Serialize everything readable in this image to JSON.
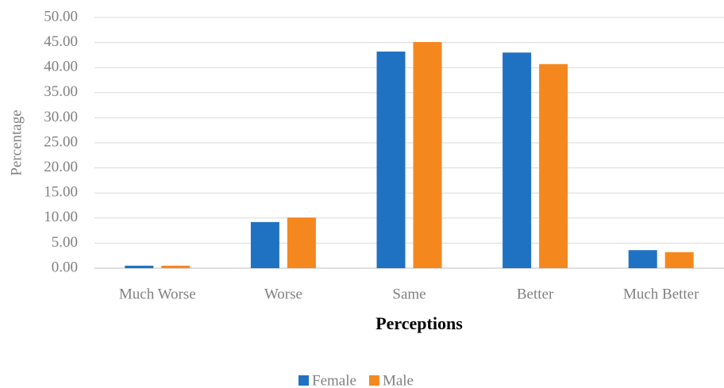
{
  "chart_data": {
    "type": "bar",
    "x_label": "Perceptions",
    "y_label": "Percentage",
    "categories": [
      "Much Worse",
      "Worse",
      "Same",
      "Better",
      "Much Better"
    ],
    "series": [
      {
        "name": "Female",
        "color": "#1f72c2",
        "values": [
          0.5,
          9.2,
          43.2,
          43.0,
          3.6
        ]
      },
      {
        "name": "Male",
        "color": "#f5871f",
        "values": [
          0.5,
          10.1,
          45.1,
          40.7,
          3.2
        ]
      }
    ],
    "ylim": [
      0,
      50
    ],
    "yticks": [
      {
        "value": 0,
        "label": "0.00"
      },
      {
        "value": 5,
        "label": "5.00"
      },
      {
        "value": 10,
        "label": "10.00"
      },
      {
        "value": 15,
        "label": "15.00"
      },
      {
        "value": 20,
        "label": "20.00"
      },
      {
        "value": 25,
        "label": "25.00"
      },
      {
        "value": 30,
        "label": "30.00"
      },
      {
        "value": 35,
        "label": "35.00"
      },
      {
        "value": 40,
        "label": "40.00"
      },
      {
        "value": 45,
        "label": "45.00"
      },
      {
        "value": 50,
        "label": "50.00"
      }
    ],
    "grid": true,
    "legend": "bottom"
  }
}
